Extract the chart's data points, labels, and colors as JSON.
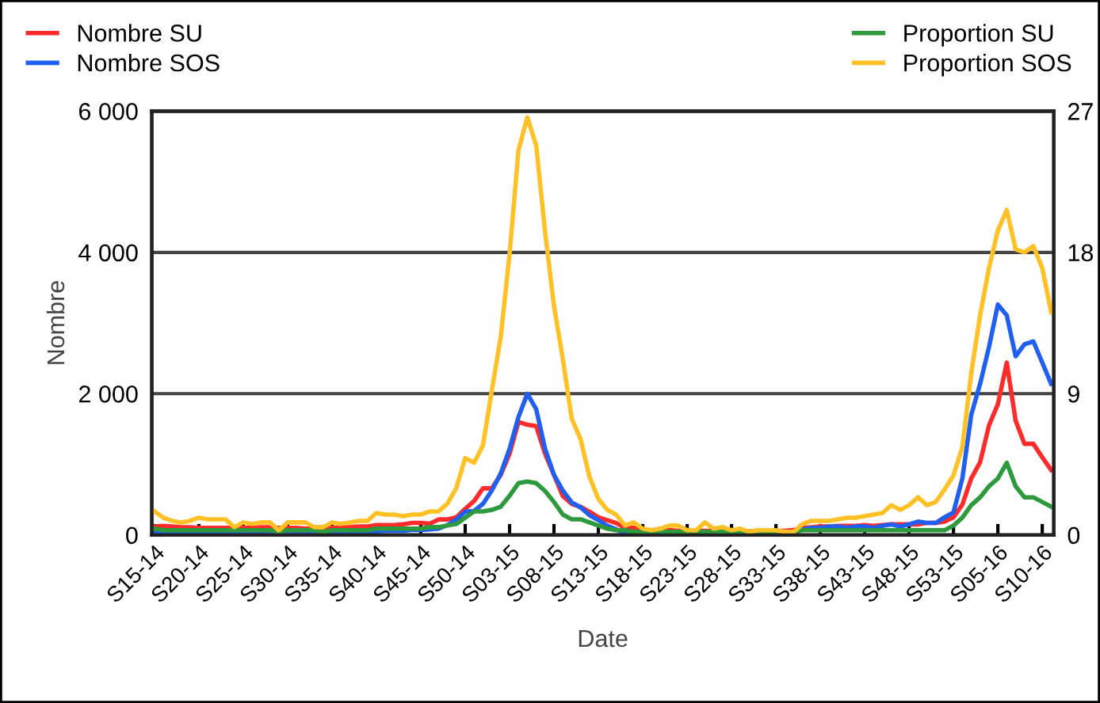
{
  "chart_data": {
    "type": "line",
    "xlabel": "Date",
    "ylabel": "Nombre",
    "legend": "top",
    "grid": "y",
    "categories": [
      "S15-14",
      null,
      null,
      null,
      null,
      "S20-14",
      null,
      null,
      null,
      null,
      "S25-14",
      null,
      null,
      null,
      null,
      "S30-14",
      null,
      null,
      null,
      null,
      "S35-14",
      null,
      null,
      null,
      null,
      "S40-14",
      null,
      null,
      null,
      null,
      "S45-14",
      null,
      null,
      null,
      null,
      "S50-14",
      null,
      null,
      null,
      null,
      "S03-15",
      null,
      null,
      null,
      null,
      "S08-15",
      null,
      null,
      null,
      null,
      "S13-15",
      null,
      null,
      null,
      null,
      "S18-15",
      null,
      null,
      null,
      null,
      "S23-15",
      null,
      null,
      null,
      null,
      "S28-15",
      null,
      null,
      null,
      null,
      "S33-15",
      null,
      null,
      null,
      null,
      "S38-15",
      null,
      null,
      null,
      null,
      "S43-15",
      null,
      null,
      null,
      null,
      "S48-15",
      null,
      null,
      null,
      null,
      "S53-15",
      null,
      null,
      null,
      null,
      "S05-16",
      null,
      null,
      null,
      null,
      "S10-16",
      null
    ],
    "ylim": [
      0,
      6000
    ],
    "yticks": [
      0,
      {
        "value": 2000,
        "label": "2 000"
      },
      {
        "value": 4000,
        "label": "4 000"
      },
      {
        "value": 6000,
        "label": "6 000"
      }
    ],
    "y2lim": [
      0,
      27
    ],
    "y2ticks": [
      0,
      9,
      18,
      27
    ],
    "series": [
      {
        "name": "Nombre SU",
        "color": "#ff2a2a",
        "values": [
          120,
          130,
          120,
          110,
          110,
          100,
          100,
          100,
          100,
          100,
          100,
          100,
          110,
          110,
          100,
          100,
          100,
          90,
          90,
          100,
          100,
          110,
          110,
          120,
          120,
          140,
          140,
          140,
          150,
          170,
          170,
          160,
          220,
          220,
          250,
          370,
          480,
          660,
          660,
          850,
          1150,
          1600,
          1560,
          1540,
          1150,
          850,
          550,
          440,
          400,
          330,
          250,
          210,
          170,
          100,
          100,
          80,
          null,
          60,
          70,
          60,
          60,
          60,
          60,
          60,
          60,
          60,
          50,
          50,
          60,
          60,
          60,
          60,
          70,
          100,
          110,
          120,
          120,
          130,
          130,
          130,
          140,
          130,
          140,
          150,
          150,
          150,
          150,
          170,
          170,
          190,
          250,
          430,
          800,
          1030,
          1550,
          1850,
          2440,
          1620,
          1290,
          1290,
          1100,
          920
        ]
      },
      {
        "name": "Nombre SOS",
        "color": "#2060f0",
        "values": [
          40,
          40,
          30,
          30,
          30,
          30,
          30,
          30,
          30,
          30,
          30,
          30,
          30,
          30,
          30,
          30,
          30,
          30,
          30,
          30,
          30,
          40,
          40,
          40,
          50,
          50,
          60,
          60,
          60,
          70,
          70,
          80,
          90,
          140,
          220,
          330,
          340,
          440,
          630,
          870,
          1220,
          1670,
          2000,
          1780,
          1220,
          850,
          630,
          460,
          390,
          280,
          210,
          130,
          80,
          20,
          20,
          20,
          10,
          10,
          10,
          10,
          10,
          10,
          10,
          10,
          10,
          10,
          10,
          10,
          10,
          20,
          20,
          20,
          30,
          80,
          100,
          100,
          120,
          120,
          100,
          120,
          120,
          100,
          130,
          150,
          120,
          150,
          190,
          170,
          170,
          250,
          320,
          800,
          1700,
          2140,
          2660,
          3260,
          3110,
          2530,
          2700,
          2740,
          2440,
          2140
        ]
      },
      {
        "name": "Proportion SU",
        "color": "#2e9a3e",
        "axis": "y2",
        "values": [
          0.4,
          0.3,
          0.3,
          0.3,
          0.3,
          0.3,
          0.3,
          0.3,
          0.3,
          0.3,
          0.3,
          0.3,
          0.3,
          0.3,
          0.2,
          0.3,
          0.3,
          0.3,
          0.3,
          0.2,
          0.3,
          0.3,
          0.3,
          0.3,
          0.3,
          0.4,
          0.4,
          0.4,
          0.4,
          0.4,
          0.4,
          0.5,
          0.5,
          0.6,
          0.7,
          1.1,
          1.5,
          1.5,
          1.6,
          1.8,
          2.5,
          3.3,
          3.4,
          3.3,
          2.8,
          2.1,
          1.3,
          1.0,
          1.0,
          0.8,
          0.6,
          0.4,
          0.3,
          0.3,
          0.2,
          0.2,
          0.2,
          0.2,
          0.2,
          0.2,
          0.2,
          0.2,
          0.2,
          0.2,
          0.2,
          0.2,
          0.2,
          0.2,
          0.2,
          0.2,
          0.2,
          0.2,
          0.2,
          0.3,
          0.3,
          0.3,
          0.3,
          0.3,
          0.3,
          0.3,
          0.3,
          0.3,
          0.3,
          0.3,
          0.3,
          0.3,
          0.3,
          0.3,
          0.3,
          0.3,
          0.6,
          1.1,
          1.9,
          2.4,
          3.1,
          3.6,
          4.6,
          3.1,
          2.4,
          2.4,
          2.1,
          1.8
        ]
      },
      {
        "name": "Proportion SOS",
        "color": "#ffc125",
        "axis": "y2",
        "values": [
          1.5,
          1.1,
          0.9,
          0.8,
          0.9,
          1.1,
          1.0,
          1.0,
          1.0,
          0.5,
          0.8,
          0.7,
          0.8,
          0.8,
          0.3,
          0.8,
          0.8,
          0.8,
          0.5,
          0.5,
          0.8,
          0.7,
          0.8,
          0.9,
          0.9,
          1.4,
          1.3,
          1.3,
          1.2,
          1.3,
          1.3,
          1.5,
          1.5,
          2.0,
          3.0,
          4.9,
          4.6,
          5.7,
          9.2,
          12.6,
          17.9,
          24.5,
          26.6,
          24.8,
          19.3,
          14.6,
          11.2,
          7.4,
          6.1,
          3.7,
          2.3,
          1.6,
          1.3,
          0.6,
          0.8,
          0.4,
          0.3,
          0.4,
          0.6,
          0.6,
          0.3,
          0.3,
          0.8,
          0.4,
          0.5,
          0.3,
          0.4,
          0.2,
          0.3,
          0.3,
          0.3,
          0.2,
          0.2,
          0.7,
          0.9,
          0.9,
          0.9,
          1.0,
          1.1,
          1.1,
          1.2,
          1.3,
          1.4,
          1.9,
          1.6,
          1.9,
          2.4,
          1.9,
          2.1,
          2.9,
          3.8,
          5.6,
          10.3,
          14.0,
          17.0,
          19.4,
          20.7,
          18.2,
          18.0,
          18.4,
          17.0,
          14.2
        ]
      }
    ]
  }
}
